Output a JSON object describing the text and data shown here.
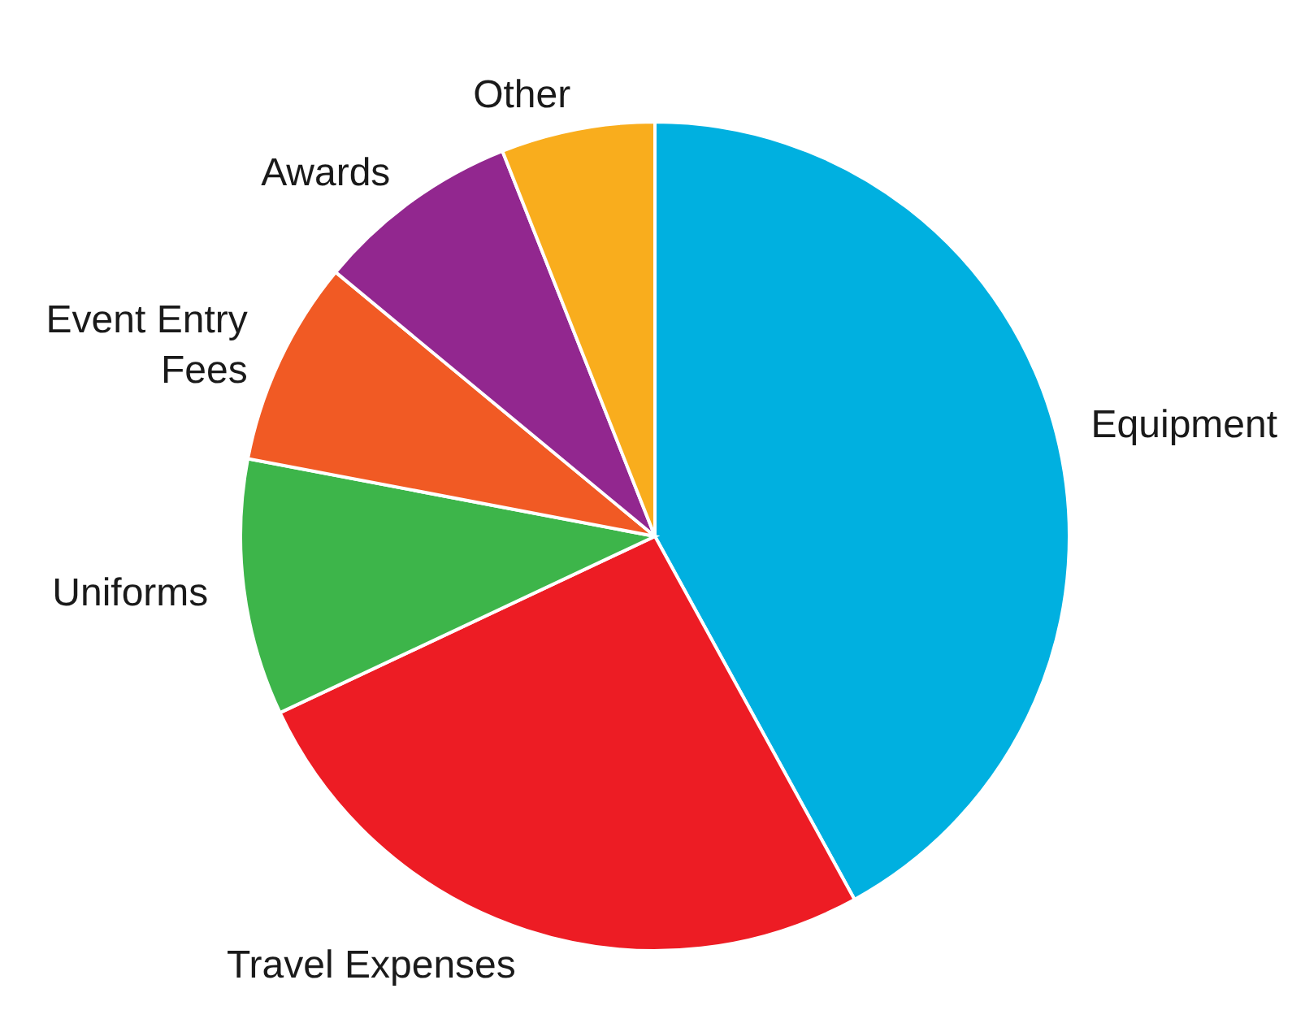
{
  "chart_data": {
    "type": "pie",
    "categories": [
      "Equipment",
      "Travel Expenses",
      "Uniforms",
      "Event Entry Fees",
      "Awards",
      "Other"
    ],
    "values": [
      42,
      26,
      10,
      8,
      8,
      6
    ],
    "colors": [
      "#00b0e0",
      "#ed1c24",
      "#3db54a",
      "#f15a24",
      "#92278f",
      "#f9ad1d"
    ],
    "legend": false
  }
}
